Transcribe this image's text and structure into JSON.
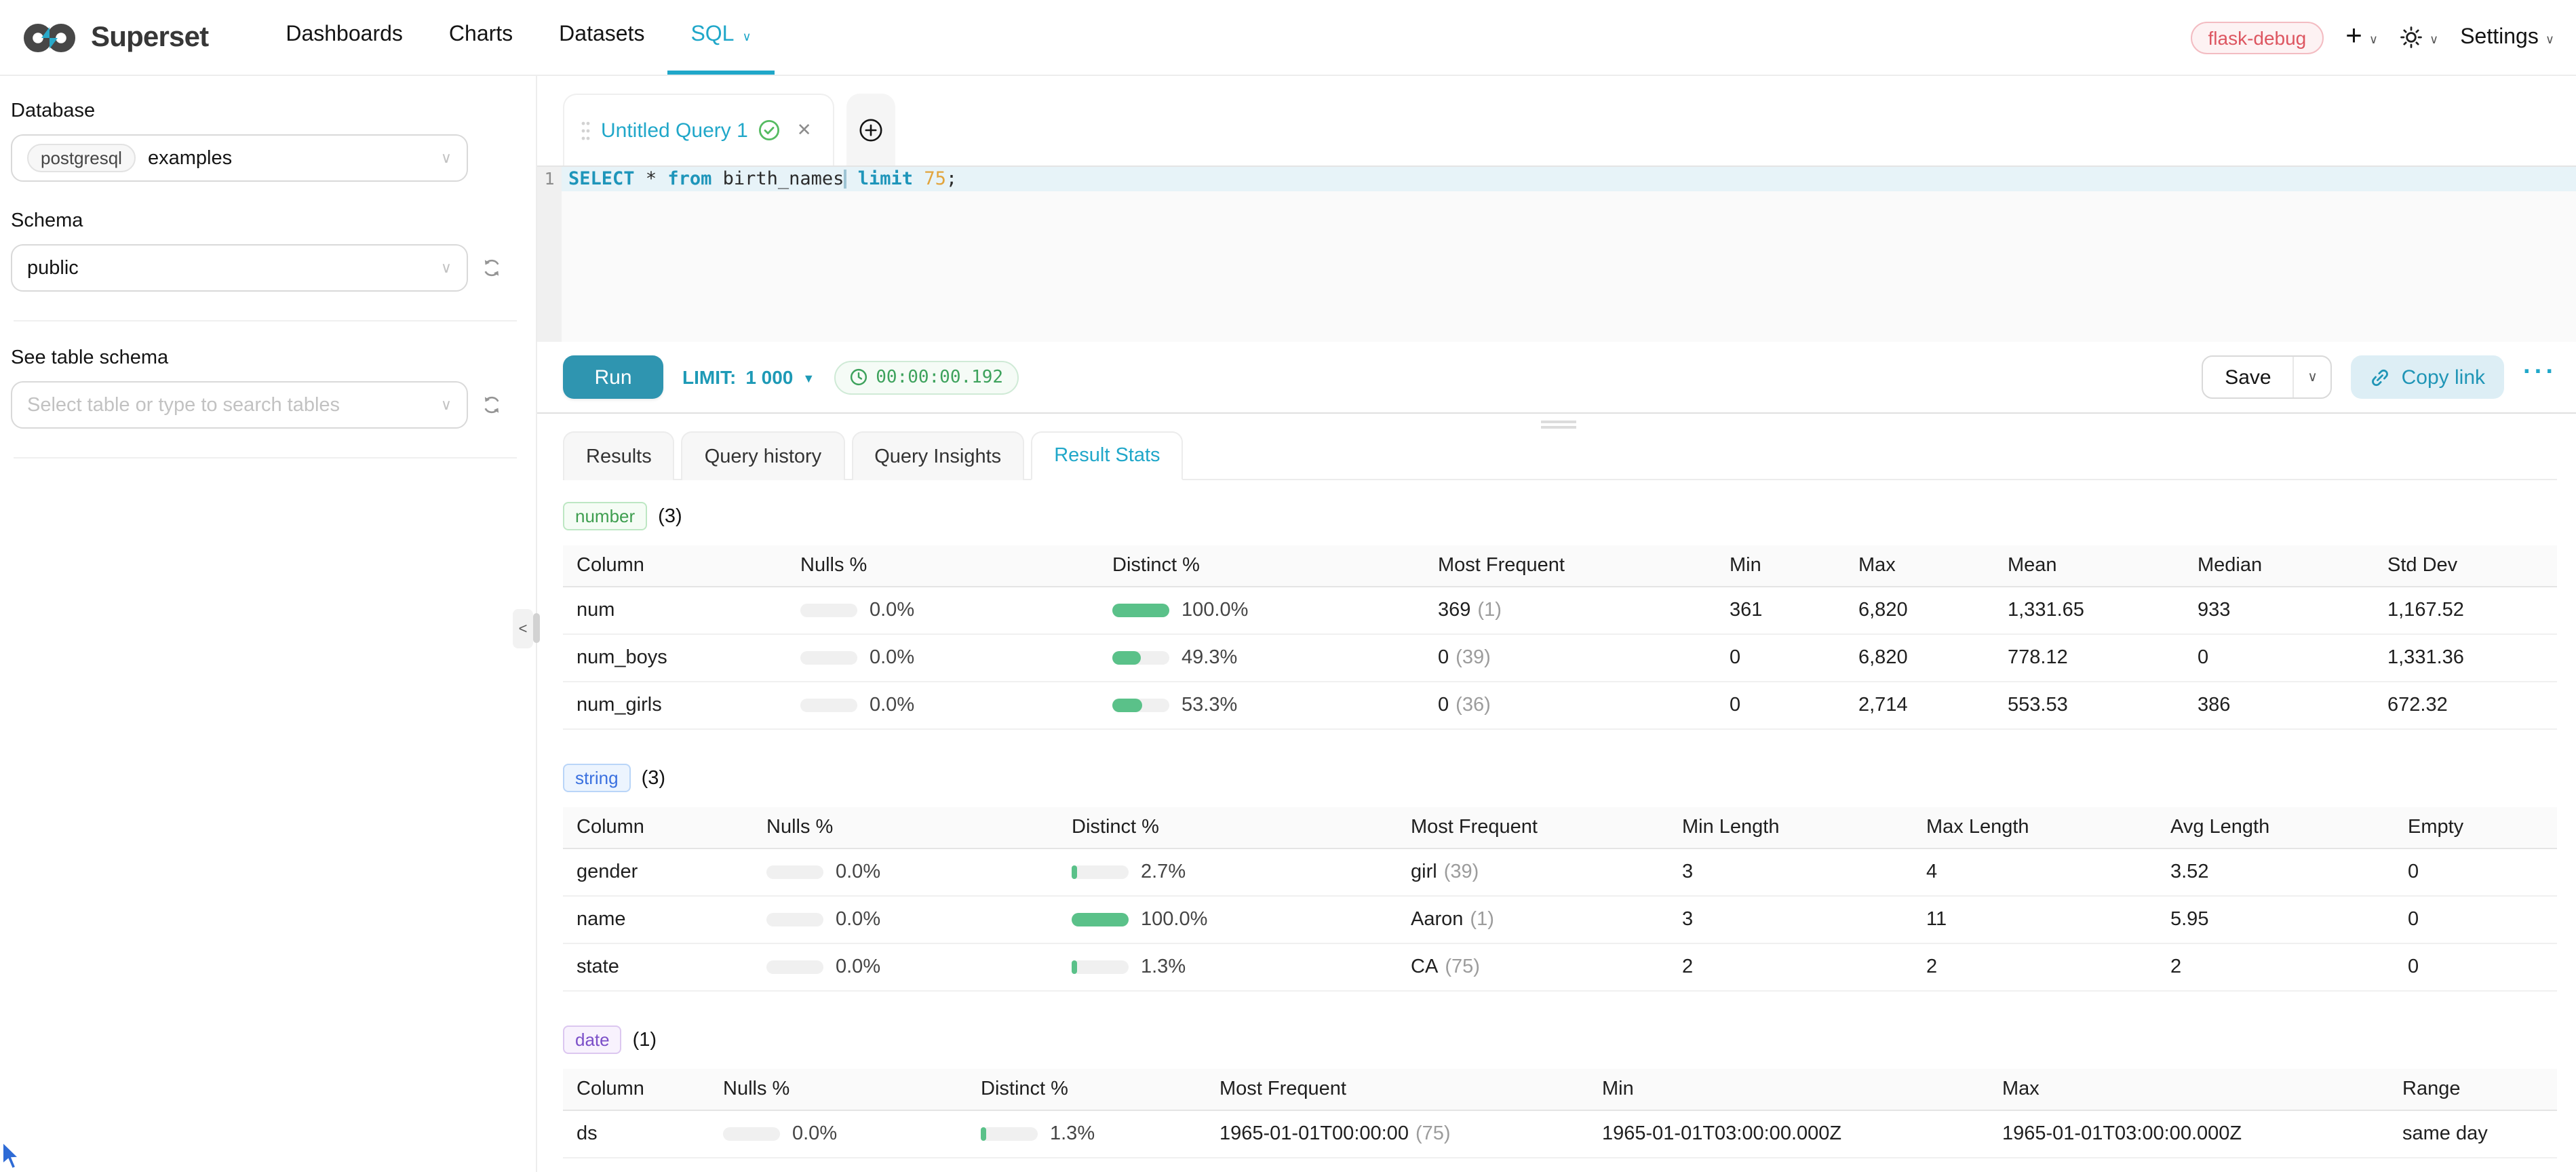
{
  "theme": {
    "primary": "#20a7c9",
    "run_button_bg": "#2f95b0",
    "limit_text": "#1e9ab6",
    "success_green": "#5ac189",
    "keyword_color": "#1e95ba",
    "number_literal_color": "#e2a43c",
    "copy_link": {
      "text": "#1f95b6",
      "bg": "#ddeef5"
    },
    "timer": {
      "text": "#3da25c",
      "bg": "#f5fbf6",
      "border": "#cfead6"
    },
    "env_badge": {
      "text": "#dd5560",
      "bg": "#fdf2f3",
      "border": "#f3bcc2"
    }
  },
  "nav": {
    "brand": "Superset",
    "items": [
      {
        "label": "Dashboards"
      },
      {
        "label": "Charts"
      },
      {
        "label": "Datasets"
      },
      {
        "label": "SQL",
        "active": true,
        "caret": true
      }
    ],
    "env_badge": "flask-debug",
    "settings_label": "Settings"
  },
  "sidebar": {
    "database_label": "Database",
    "database_engine_tag": "postgresql",
    "database_value": "examples",
    "schema_label": "Schema",
    "schema_value": "public",
    "table_label": "See table schema",
    "table_placeholder": "Select table or type to search tables"
  },
  "editor_tabs": {
    "active_title": "Untitled Query 1"
  },
  "editor": {
    "line_number": "1",
    "sql_text": "SELECT * from birth_names limit 75;",
    "tokens": [
      {
        "t": "SELECT",
        "c": "kw"
      },
      {
        "t": " * ",
        "c": "p"
      },
      {
        "t": "from",
        "c": "kw"
      },
      {
        "t": " birth_names",
        "c": "p"
      },
      {
        "t": "",
        "c": "caret"
      },
      {
        "t": " ",
        "c": "p"
      },
      {
        "t": "limit",
        "c": "kw"
      },
      {
        "t": " ",
        "c": "p"
      },
      {
        "t": "75",
        "c": "num"
      },
      {
        "t": ";",
        "c": "p"
      }
    ]
  },
  "toolbar": {
    "run_label": "Run",
    "limit_label": "LIMIT:",
    "limit_value": "1 000",
    "elapsed_time": "00:00:00.192",
    "save_label": "Save",
    "copy_link_label": "Copy link",
    "more_label": "···"
  },
  "results_panel": {
    "tabs": [
      "Results",
      "Query history",
      "Query Insights",
      "Result Stats"
    ],
    "active_tab": "Result Stats",
    "sections": [
      {
        "tag": "number",
        "count": "(3)",
        "colors": {
          "text": "#3e9e4f",
          "bg": "#f5fcf5",
          "border": "#bde7c3"
        },
        "headers": [
          "Column",
          "Nulls %",
          "Distinct %",
          "Most Frequent",
          "Min",
          "Max",
          "Mean",
          "Median",
          "Std Dev"
        ],
        "rows": [
          {
            "column": "num",
            "nulls_pct": "0.0%",
            "nulls_fill": 0,
            "distinct_pct": "100.0%",
            "distinct_fill": 100,
            "freq_value": "369",
            "freq_count": "(1)",
            "values": [
              "361",
              "6,820",
              "1,331.65",
              "933",
              "1,167.52"
            ]
          },
          {
            "column": "num_boys",
            "nulls_pct": "0.0%",
            "nulls_fill": 0,
            "distinct_pct": "49.3%",
            "distinct_fill": 49.3,
            "freq_value": "0",
            "freq_count": "(39)",
            "values": [
              "0",
              "6,820",
              "778.12",
              "0",
              "1,331.36"
            ]
          },
          {
            "column": "num_girls",
            "nulls_pct": "0.0%",
            "nulls_fill": 0,
            "distinct_pct": "53.3%",
            "distinct_fill": 53.3,
            "freq_value": "0",
            "freq_count": "(36)",
            "values": [
              "0",
              "2,714",
              "553.53",
              "386",
              "672.32"
            ]
          }
        ]
      },
      {
        "tag": "string",
        "count": "(3)",
        "colors": {
          "text": "#3a70df",
          "bg": "#ecf4fe",
          "border": "#b9d5f8"
        },
        "headers": [
          "Column",
          "Nulls %",
          "Distinct %",
          "Most Frequent",
          "Min Length",
          "Max Length",
          "Avg Length",
          "Empty"
        ],
        "rows": [
          {
            "column": "gender",
            "nulls_pct": "0.0%",
            "nulls_fill": 0,
            "distinct_pct": "2.7%",
            "distinct_fill": 2.7,
            "freq_value": "girl",
            "freq_count": "(39)",
            "values": [
              "3",
              "4",
              "3.52",
              "0"
            ]
          },
          {
            "column": "name",
            "nulls_pct": "0.0%",
            "nulls_fill": 0,
            "distinct_pct": "100.0%",
            "distinct_fill": 100,
            "freq_value": "Aaron",
            "freq_count": "(1)",
            "values": [
              "3",
              "11",
              "5.95",
              "0"
            ]
          },
          {
            "column": "state",
            "nulls_pct": "0.0%",
            "nulls_fill": 0,
            "distinct_pct": "1.3%",
            "distinct_fill": 1.3,
            "freq_value": "CA",
            "freq_count": "(75)",
            "values": [
              "2",
              "2",
              "2",
              "0"
            ]
          }
        ]
      },
      {
        "tag": "date",
        "count": "(1)",
        "colors": {
          "text": "#7b4fc8",
          "bg": "#f8f2fd",
          "border": "#dcc7f0"
        },
        "headers": [
          "Column",
          "Nulls %",
          "Distinct %",
          "Most Frequent",
          "Min",
          "Max",
          "Range"
        ],
        "rows": [
          {
            "column": "ds",
            "nulls_pct": "0.0%",
            "nulls_fill": 0,
            "distinct_pct": "1.3%",
            "distinct_fill": 1.3,
            "freq_value": "1965-01-01T00:00:00",
            "freq_count": "(75)",
            "values": [
              "1965-01-01T03:00:00.000Z",
              "1965-01-01T03:00:00.000Z",
              "same day"
            ]
          }
        ]
      }
    ]
  }
}
